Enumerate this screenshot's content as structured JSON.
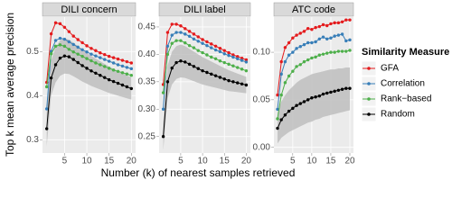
{
  "shared": {
    "y_label": "Top k mean average precision",
    "x_label": "Number (k) of nearest samples retrieved",
    "legend_title": "Similarity Measure",
    "legend_position": "right"
  },
  "chart_data": [
    {
      "type": "line",
      "title": "DILI concern",
      "x": [
        1,
        2,
        3,
        4,
        5,
        6,
        7,
        8,
        9,
        10,
        11,
        12,
        13,
        14,
        15,
        16,
        17,
        18,
        19,
        20
      ],
      "xlim": [
        0.05,
        20.95
      ],
      "xticks": [
        5,
        10,
        15,
        20
      ],
      "ylim": [
        0.27,
        0.578
      ],
      "yticks": [
        0.3,
        0.4,
        0.5
      ],
      "grid": true,
      "series": [
        {
          "name": "GFA",
          "color": "#e41a1c",
          "values": [
            0.43,
            0.54,
            0.565,
            0.563,
            0.555,
            0.545,
            0.535,
            0.527,
            0.52,
            0.513,
            0.507,
            0.502,
            0.497,
            0.493,
            0.489,
            0.486,
            0.483,
            0.48,
            0.477,
            0.474
          ]
        },
        {
          "name": "Correlation",
          "color": "#377eb8",
          "values": [
            0.37,
            0.5,
            0.525,
            0.53,
            0.528,
            0.522,
            0.516,
            0.51,
            0.504,
            0.499,
            0.494,
            0.49,
            0.486,
            0.482,
            0.478,
            0.474,
            0.47,
            0.467,
            0.464,
            0.461
          ]
        },
        {
          "name": "Rank−based",
          "color": "#4daf4a",
          "values": [
            0.42,
            0.495,
            0.512,
            0.515,
            0.512,
            0.505,
            0.499,
            0.494,
            0.489,
            0.484,
            0.479,
            0.474,
            0.47,
            0.466,
            0.462,
            0.458,
            0.455,
            0.452,
            0.449,
            0.446
          ]
        },
        {
          "name": "Random",
          "color": "#000000",
          "values": [
            0.325,
            0.44,
            0.47,
            0.485,
            0.49,
            0.488,
            0.482,
            0.475,
            0.468,
            0.462,
            0.456,
            0.451,
            0.446,
            0.441,
            0.436,
            0.432,
            0.428,
            0.424,
            0.42,
            0.416
          ],
          "ribbon": {
            "color": "#bebebe",
            "lower": [
              0.285,
              0.4,
              0.43,
              0.445,
              0.45,
              0.449,
              0.444,
              0.438,
              0.432,
              0.427,
              0.422,
              0.418,
              0.414,
              0.41,
              0.406,
              0.403,
              0.4,
              0.397,
              0.394,
              0.391
            ],
            "upper": [
              0.365,
              0.48,
              0.51,
              0.525,
              0.53,
              0.527,
              0.52,
              0.512,
              0.504,
              0.497,
              0.49,
              0.484,
              0.478,
              0.472,
              0.466,
              0.461,
              0.456,
              0.451,
              0.446,
              0.441
            ]
          }
        }
      ]
    },
    {
      "type": "line",
      "title": "DILI label",
      "x": [
        1,
        2,
        3,
        4,
        5,
        6,
        7,
        8,
        9,
        10,
        11,
        12,
        13,
        14,
        15,
        16,
        17,
        18,
        19,
        20
      ],
      "xlim": [
        0.05,
        20.95
      ],
      "xticks": [
        5,
        10,
        15,
        20
      ],
      "ylim": [
        0.22,
        0.468
      ],
      "yticks": [
        0.25,
        {
          "value": 0.3,
          "label": "0.30"
        },
        0.35,
        {
          "value": 0.4,
          "label": "0.40"
        },
        0.45
      ],
      "grid": true,
      "series": [
        {
          "color": "#e41a1c",
          "values": [
            0.345,
            0.44,
            0.455,
            0.455,
            0.452,
            0.447,
            0.442,
            0.437,
            0.432,
            0.427,
            0.423,
            0.419,
            0.415,
            0.411,
            0.407,
            0.403,
            0.399,
            0.396,
            0.393,
            0.39
          ]
        },
        {
          "color": "#377eb8",
          "values": [
            0.3,
            0.415,
            0.435,
            0.44,
            0.44,
            0.437,
            0.433,
            0.428,
            0.424,
            0.42,
            0.416,
            0.412,
            0.408,
            0.405,
            0.401,
            0.398,
            0.395,
            0.392,
            0.389,
            0.386
          ]
        },
        {
          "color": "#4daf4a",
          "values": [
            0.33,
            0.4,
            0.42,
            0.425,
            0.425,
            0.421,
            0.416,
            0.412,
            0.407,
            0.403,
            0.399,
            0.395,
            0.392,
            0.388,
            0.385,
            0.382,
            0.379,
            0.376,
            0.373,
            0.37
          ]
        },
        {
          "color": "#000000",
          "values": [
            0.25,
            0.35,
            0.375,
            0.385,
            0.388,
            0.386,
            0.382,
            0.378,
            0.374,
            0.37,
            0.367,
            0.364,
            0.361,
            0.358,
            0.355,
            0.352,
            0.35,
            0.348,
            0.346,
            0.344
          ],
          "ribbon": {
            "color": "#bebebe",
            "lower": [
              0.225,
              0.32,
              0.345,
              0.355,
              0.358,
              0.357,
              0.354,
              0.351,
              0.348,
              0.345,
              0.343,
              0.341,
              0.339,
              0.337,
              0.335,
              0.333,
              0.332,
              0.331,
              0.33,
              0.329
            ],
            "upper": [
              0.275,
              0.38,
              0.405,
              0.415,
              0.418,
              0.415,
              0.41,
              0.405,
              0.4,
              0.395,
              0.391,
              0.387,
              0.383,
              0.379,
              0.375,
              0.371,
              0.368,
              0.365,
              0.362,
              0.359
            ]
          }
        }
      ]
    },
    {
      "type": "line",
      "title": "ATC code",
      "x": [
        1,
        2,
        3,
        4,
        5,
        6,
        7,
        8,
        9,
        10,
        11,
        12,
        13,
        14,
        15,
        16,
        17,
        18,
        19,
        20
      ],
      "xlim": [
        0.05,
        20.95
      ],
      "xticks": [
        5,
        10,
        15,
        20
      ],
      "ylim": [
        -0.006,
        0.137
      ],
      "yticks": [
        {
          "value": 0,
          "label": "0.00"
        },
        0.05,
        {
          "value": 0.1,
          "label": "0.10"
        }
      ],
      "grid": true,
      "series": [
        {
          "color": "#e41a1c",
          "values": [
            0.055,
            0.09,
            0.105,
            0.11,
            0.115,
            0.118,
            0.12,
            0.122,
            0.125,
            0.124,
            0.126,
            0.127,
            0.129,
            0.128,
            0.13,
            0.131,
            0.131,
            0.132,
            0.134,
            0.134
          ]
        },
        {
          "color": "#377eb8",
          "values": [
            0.04,
            0.077,
            0.09,
            0.097,
            0.1,
            0.104,
            0.106,
            0.108,
            0.11,
            0.11,
            0.111,
            0.114,
            0.116,
            0.114,
            0.115,
            0.117,
            0.118,
            0.119,
            0.112,
            0.113
          ]
        },
        {
          "color": "#4daf4a",
          "values": [
            0.03,
            0.055,
            0.068,
            0.075,
            0.08,
            0.085,
            0.087,
            0.09,
            0.092,
            0.094,
            0.095,
            0.097,
            0.098,
            0.099,
            0.1,
            0.1,
            0.101,
            0.101,
            0.101,
            0.102
          ]
        },
        {
          "color": "#000000",
          "values": [
            0.02,
            0.029,
            0.034,
            0.038,
            0.041,
            0.044,
            0.046,
            0.048,
            0.05,
            0.052,
            0.053,
            0.054,
            0.056,
            0.057,
            0.058,
            0.059,
            0.06,
            0.061,
            0.062,
            0.062
          ],
          "ribbon": {
            "color": "#bebebe",
            "lower": [
              0.004,
              0.01,
              0.013,
              0.016,
              0.018,
              0.02,
              0.022,
              0.024,
              0.026,
              0.027,
              0.029,
              0.03,
              0.032,
              0.033,
              0.034,
              0.035,
              0.036,
              0.037,
              0.038,
              0.039
            ],
            "upper": [
              0.036,
              0.048,
              0.055,
              0.06,
              0.064,
              0.068,
              0.071,
              0.073,
              0.075,
              0.077,
              0.078,
              0.079,
              0.08,
              0.081,
              0.082,
              0.082,
              0.083,
              0.083,
              0.084,
              0.084
            ]
          }
        }
      ]
    }
  ]
}
